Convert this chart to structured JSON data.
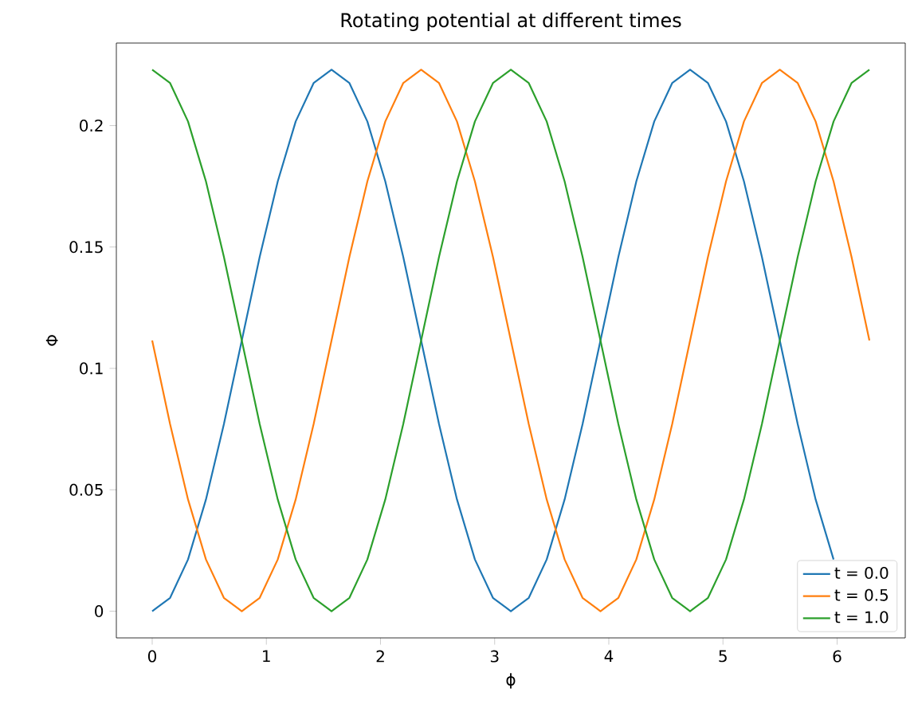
{
  "chart_data": {
    "type": "line",
    "title": "Rotating potential at different times",
    "xlabel": "ϕ",
    "ylabel": "Φ",
    "x": [
      0,
      0.157,
      0.314,
      0.471,
      0.628,
      0.785,
      0.942,
      1.1,
      1.257,
      1.414,
      1.571,
      1.728,
      1.885,
      2.042,
      2.199,
      2.356,
      2.513,
      2.67,
      2.827,
      2.985,
      3.142,
      3.299,
      3.456,
      3.613,
      3.77,
      3.927,
      4.084,
      4.241,
      4.398,
      4.555,
      4.712,
      4.869,
      5.027,
      5.184,
      5.341,
      5.498,
      5.655,
      5.812,
      5.969,
      6.126,
      6.283
    ],
    "series": [
      {
        "name": "t = 0.0",
        "color": "#1f77b4",
        "values": [
          0,
          0.0055,
          0.0213,
          0.046,
          0.077,
          0.1115,
          0.146,
          0.177,
          0.2017,
          0.2175,
          0.223,
          0.2175,
          0.2017,
          0.177,
          0.146,
          0.1115,
          0.077,
          0.046,
          0.0213,
          0.0055,
          0,
          0.0055,
          0.0213,
          0.046,
          0.077,
          0.1115,
          0.146,
          0.177,
          0.2017,
          0.2175,
          0.223,
          0.2175,
          0.2017,
          0.177,
          0.146,
          0.1115,
          0.077,
          0.046,
          0.0213,
          null,
          null
        ]
      },
      {
        "name": "t = 0.5",
        "color": "#ff7f0e",
        "values": [
          0.1115,
          0.077,
          0.046,
          0.0213,
          0.0055,
          0,
          0.0055,
          0.0213,
          0.046,
          0.077,
          0.1115,
          0.146,
          0.177,
          0.2017,
          0.2175,
          0.223,
          0.2175,
          0.2017,
          0.177,
          0.146,
          0.1115,
          0.077,
          0.046,
          0.0213,
          0.0055,
          0,
          0.0055,
          0.0213,
          0.046,
          0.077,
          0.1115,
          0.146,
          0.177,
          0.2017,
          0.2175,
          0.223,
          0.2175,
          0.2017,
          0.177,
          0.146,
          0.1115
        ]
      },
      {
        "name": "t = 1.0",
        "color": "#2ca02c",
        "values": [
          0.223,
          0.2175,
          0.2017,
          0.177,
          0.146,
          0.1115,
          0.077,
          0.046,
          0.0213,
          0.0055,
          0,
          0.0055,
          0.0213,
          0.046,
          0.077,
          0.1115,
          0.146,
          0.177,
          0.2017,
          0.2175,
          0.223,
          0.2175,
          0.2017,
          0.177,
          0.146,
          0.1115,
          0.077,
          0.046,
          0.0213,
          0.0055,
          0,
          0.0055,
          0.0213,
          0.046,
          0.077,
          0.1115,
          0.146,
          0.177,
          0.2017,
          0.2175,
          0.223
        ]
      }
    ],
    "xlim": [
      -0.314,
      6.597
    ],
    "ylim": [
      -0.011,
      0.234
    ],
    "xticks": [
      0,
      1,
      2,
      3,
      4,
      5,
      6
    ],
    "yticks": [
      0,
      0.05,
      0.1,
      0.15,
      0.2
    ],
    "legend": "bottom right"
  }
}
